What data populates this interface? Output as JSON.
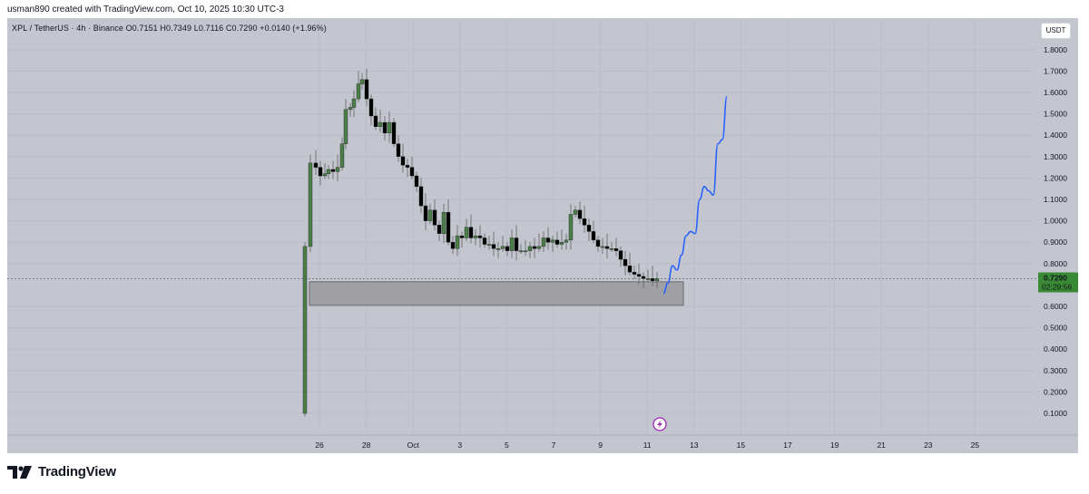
{
  "header": {
    "author_line": "usman890 created with TradingView.com, Oct 10, 2025 10:30 UTC-3"
  },
  "symbol_info": {
    "text": "XPL / TetherUS · 4h · Binance  O0.7151  H0.7349  L0.7116  C0.7290  +0.0140 (+1.96%)"
  },
  "currency_button": {
    "label": "USDT"
  },
  "price_tag": {
    "price": "0.7290",
    "countdown": "02:29:56"
  },
  "footer": {
    "brand": "TradingView"
  },
  "colors": {
    "background": "#c3c6ce",
    "bull": "#4a7f47",
    "bear": "#000000",
    "projection": "#2962ff",
    "zone": "#a0a0a4",
    "price_tag": "#3a8a35"
  },
  "chart_data": {
    "type": "candlestick",
    "title": "",
    "xlabel": "",
    "ylabel": "",
    "ylim": [
      0.03,
      1.87
    ],
    "y_ticks": [
      "1.8000",
      "1.7000",
      "1.6000",
      "1.5000",
      "1.4000",
      "1.3000",
      "1.2000",
      "1.1000",
      "1.0000",
      "0.9000",
      "0.8000",
      "0.6000",
      "0.5000",
      "0.4000",
      "0.3000",
      "0.2000",
      "0.1000"
    ],
    "x_ticks": [
      "26",
      "28",
      "Oct",
      "3",
      "5",
      "7",
      "9",
      "11",
      "13",
      "15",
      "17",
      "19",
      "21",
      "23",
      "25"
    ],
    "grid": true,
    "candle_points": [
      {
        "x": 336,
        "y": 0.88
      },
      {
        "x": 342,
        "y": 1.27
      },
      {
        "x": 348,
        "y": 1.25
      },
      {
        "x": 353,
        "y": 1.21
      },
      {
        "x": 358,
        "y": 1.22
      },
      {
        "x": 362,
        "y": 1.24
      },
      {
        "x": 367,
        "y": 1.23
      },
      {
        "x": 372,
        "y": 1.25
      },
      {
        "x": 377,
        "y": 1.36
      },
      {
        "x": 381,
        "y": 1.52
      },
      {
        "x": 386,
        "y": 1.53
      },
      {
        "x": 390,
        "y": 1.57
      },
      {
        "x": 395,
        "y": 1.64
      },
      {
        "x": 399,
        "y": 1.66
      },
      {
        "x": 404,
        "y": 1.57
      },
      {
        "x": 409,
        "y": 1.49
      },
      {
        "x": 414,
        "y": 1.44
      },
      {
        "x": 419,
        "y": 1.46
      },
      {
        "x": 424,
        "y": 1.41
      },
      {
        "x": 429,
        "y": 1.46
      },
      {
        "x": 434,
        "y": 1.36
      },
      {
        "x": 439,
        "y": 1.3
      },
      {
        "x": 444,
        "y": 1.26
      },
      {
        "x": 449,
        "y": 1.25
      },
      {
        "x": 454,
        "y": 1.21
      },
      {
        "x": 459,
        "y": 1.16
      },
      {
        "x": 464,
        "y": 1.07
      },
      {
        "x": 469,
        "y": 1.0
      },
      {
        "x": 474,
        "y": 1.05
      },
      {
        "x": 479,
        "y": 0.98
      },
      {
        "x": 484,
        "y": 0.94
      },
      {
        "x": 489,
        "y": 1.04
      },
      {
        "x": 494,
        "y": 0.9
      },
      {
        "x": 499,
        "y": 0.87
      },
      {
        "x": 504,
        "y": 0.93
      },
      {
        "x": 509,
        "y": 0.92
      },
      {
        "x": 514,
        "y": 0.97
      },
      {
        "x": 519,
        "y": 0.92
      },
      {
        "x": 524,
        "y": 0.93
      },
      {
        "x": 529,
        "y": 0.92
      },
      {
        "x": 534,
        "y": 0.89
      },
      {
        "x": 539,
        "y": 0.89
      },
      {
        "x": 544,
        "y": 0.87
      },
      {
        "x": 549,
        "y": 0.87
      },
      {
        "x": 554,
        "y": 0.88
      },
      {
        "x": 559,
        "y": 0.86
      },
      {
        "x": 564,
        "y": 0.92
      },
      {
        "x": 569,
        "y": 0.86
      },
      {
        "x": 574,
        "y": 0.86
      },
      {
        "x": 579,
        "y": 0.86
      },
      {
        "x": 584,
        "y": 0.88
      },
      {
        "x": 589,
        "y": 0.87
      },
      {
        "x": 594,
        "y": 0.88
      },
      {
        "x": 599,
        "y": 0.92
      },
      {
        "x": 604,
        "y": 0.9
      },
      {
        "x": 609,
        "y": 0.91
      },
      {
        "x": 614,
        "y": 0.89
      },
      {
        "x": 619,
        "y": 0.9
      },
      {
        "x": 624,
        "y": 0.91
      },
      {
        "x": 629,
        "y": 1.03
      },
      {
        "x": 634,
        "y": 1.05
      },
      {
        "x": 639,
        "y": 1.01
      },
      {
        "x": 644,
        "y": 0.98
      },
      {
        "x": 649,
        "y": 0.95
      },
      {
        "x": 654,
        "y": 0.91
      },
      {
        "x": 659,
        "y": 0.88
      },
      {
        "x": 664,
        "y": 0.88
      },
      {
        "x": 669,
        "y": 0.87
      },
      {
        "x": 674,
        "y": 0.87
      },
      {
        "x": 679,
        "y": 0.86
      },
      {
        "x": 684,
        "y": 0.82
      },
      {
        "x": 689,
        "y": 0.79
      },
      {
        "x": 694,
        "y": 0.76
      },
      {
        "x": 699,
        "y": 0.75
      },
      {
        "x": 704,
        "y": 0.74
      },
      {
        "x": 709,
        "y": 0.73
      },
      {
        "x": 714,
        "y": 0.73
      },
      {
        "x": 719,
        "y": 0.72
      },
      {
        "x": 724,
        "y": 0.73
      }
    ],
    "support_zone": {
      "y_low": 0.605,
      "y_high": 0.715
    },
    "projection_points": [
      {
        "x": 731,
        "y": 0.66
      },
      {
        "x": 736,
        "y": 0.71
      },
      {
        "x": 741,
        "y": 0.79
      },
      {
        "x": 746,
        "y": 0.77
      },
      {
        "x": 751,
        "y": 0.84
      },
      {
        "x": 756,
        "y": 0.93
      },
      {
        "x": 761,
        "y": 0.95
      },
      {
        "x": 766,
        "y": 0.94
      },
      {
        "x": 771,
        "y": 1.1
      },
      {
        "x": 776,
        "y": 1.16
      },
      {
        "x": 781,
        "y": 1.14
      },
      {
        "x": 786,
        "y": 1.12
      },
      {
        "x": 791,
        "y": 1.36
      },
      {
        "x": 796,
        "y": 1.38
      },
      {
        "x": 801,
        "y": 1.58
      }
    ],
    "last_price": 0.729
  }
}
